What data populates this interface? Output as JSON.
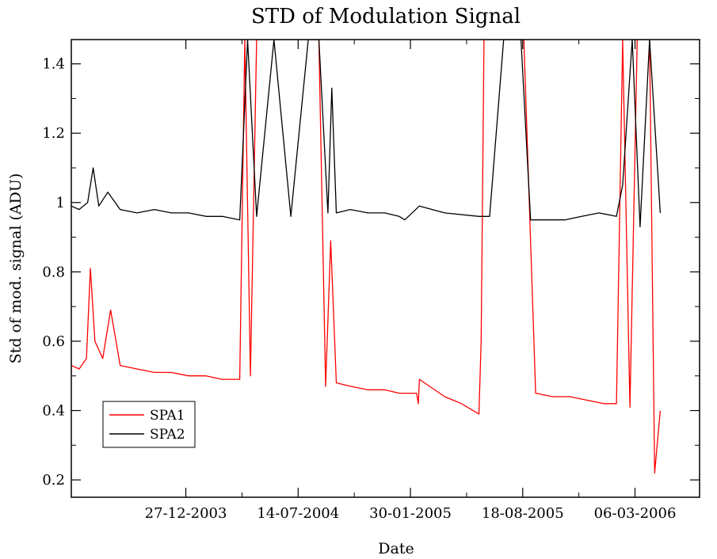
{
  "chart_data": {
    "type": "line",
    "title": "STD of Modulation Signal",
    "xlabel": "Date",
    "ylabel": "Std of mod. signal (ADU)",
    "x_axis_type": "date",
    "xlim": [
      "2003-06-06",
      "2006-06-29"
    ],
    "ylim": [
      0.15,
      1.47
    ],
    "x_tick_labels": [
      "27-12-2003",
      "14-07-2004",
      "30-01-2005",
      "18-08-2005",
      "06-03-2006"
    ],
    "x_ticks": [
      "2003-12-27",
      "2004-07-14",
      "2005-01-30",
      "2005-08-18",
      "2006-03-06"
    ],
    "y_ticks": [
      0.2,
      0.4,
      0.6,
      0.8,
      1.0,
      1.2,
      1.4
    ],
    "y_tick_labels": [
      "0.2",
      "0.4",
      "0.6",
      "0.8",
      "1",
      "1.2",
      "1.4"
    ],
    "grid": false,
    "legend_position": "bottom-left",
    "series": [
      {
        "name": "SPA1",
        "color": "#ff0000",
        "points": [
          [
            "2003-06-06",
            0.53
          ],
          [
            "2003-06-20",
            0.52
          ],
          [
            "2003-07-03",
            0.55
          ],
          [
            "2003-07-10",
            0.81
          ],
          [
            "2003-07-18",
            0.6
          ],
          [
            "2003-08-01",
            0.55
          ],
          [
            "2003-08-15",
            0.69
          ],
          [
            "2003-09-01",
            0.53
          ],
          [
            "2003-10-01",
            0.52
          ],
          [
            "2003-11-01",
            0.51
          ],
          [
            "2003-12-01",
            0.51
          ],
          [
            "2004-01-01",
            0.5
          ],
          [
            "2004-02-01",
            0.5
          ],
          [
            "2004-03-01",
            0.49
          ],
          [
            "2004-04-01",
            0.49
          ],
          [
            "2004-04-10",
            1.47
          ],
          [
            "2004-04-20",
            0.5
          ],
          [
            "2004-05-01",
            1.47
          ],
          [
            "2004-06-01",
            1.47
          ],
          [
            "2004-07-01",
            1.47
          ],
          [
            "2004-08-01",
            1.47
          ],
          [
            "2004-08-20",
            1.47
          ],
          [
            "2004-09-01",
            0.47
          ],
          [
            "2004-09-10",
            0.89
          ],
          [
            "2004-09-20",
            0.48
          ],
          [
            "2004-10-15",
            0.47
          ],
          [
            "2004-11-15",
            0.46
          ],
          [
            "2004-12-15",
            0.46
          ],
          [
            "2005-01-10",
            0.45
          ],
          [
            "2005-02-10",
            0.45
          ],
          [
            "2005-02-13",
            0.42
          ],
          [
            "2005-02-15",
            0.49
          ],
          [
            "2005-04-01",
            0.44
          ],
          [
            "2005-05-01",
            0.42
          ],
          [
            "2005-06-01",
            0.39
          ],
          [
            "2005-06-05",
            0.6
          ],
          [
            "2005-06-10",
            1.47
          ],
          [
            "2005-07-01",
            1.47
          ],
          [
            "2005-08-01",
            1.47
          ],
          [
            "2005-08-20",
            1.47
          ],
          [
            "2005-09-10",
            0.45
          ],
          [
            "2005-10-10",
            0.44
          ],
          [
            "2005-11-10",
            0.44
          ],
          [
            "2005-12-10",
            0.43
          ],
          [
            "2006-01-10",
            0.42
          ],
          [
            "2006-02-01",
            0.42
          ],
          [
            "2006-02-12",
            1.47
          ],
          [
            "2006-02-25",
            0.41
          ],
          [
            "2006-03-10",
            1.47
          ],
          [
            "2006-04-01",
            1.47
          ],
          [
            "2006-04-10",
            0.22
          ],
          [
            "2006-04-20",
            0.4
          ]
        ]
      },
      {
        "name": "SPA2",
        "color": "#000000",
        "points": [
          [
            "2003-06-06",
            0.99
          ],
          [
            "2003-06-20",
            0.98
          ],
          [
            "2003-07-05",
            1.0
          ],
          [
            "2003-07-15",
            1.1
          ],
          [
            "2003-07-25",
            0.99
          ],
          [
            "2003-08-10",
            1.03
          ],
          [
            "2003-09-01",
            0.98
          ],
          [
            "2003-10-01",
            0.97
          ],
          [
            "2003-11-01",
            0.98
          ],
          [
            "2003-12-01",
            0.97
          ],
          [
            "2004-01-01",
            0.97
          ],
          [
            "2004-02-01",
            0.96
          ],
          [
            "2004-03-01",
            0.96
          ],
          [
            "2004-04-01",
            0.95
          ],
          [
            "2004-04-15",
            1.47
          ],
          [
            "2004-05-01",
            0.96
          ],
          [
            "2004-06-01",
            1.47
          ],
          [
            "2004-07-01",
            0.96
          ],
          [
            "2004-08-01",
            1.47
          ],
          [
            "2004-08-20",
            1.47
          ],
          [
            "2004-09-05",
            0.97
          ],
          [
            "2004-09-12",
            1.33
          ],
          [
            "2004-09-20",
            0.97
          ],
          [
            "2004-10-15",
            0.98
          ],
          [
            "2004-11-15",
            0.97
          ],
          [
            "2004-12-15",
            0.97
          ],
          [
            "2005-01-10",
            0.96
          ],
          [
            "2005-01-20",
            0.95
          ],
          [
            "2005-02-15",
            0.99
          ],
          [
            "2005-04-01",
            0.97
          ],
          [
            "2005-06-01",
            0.96
          ],
          [
            "2005-06-20",
            0.96
          ],
          [
            "2005-07-15",
            1.47
          ],
          [
            "2005-08-15",
            1.47
          ],
          [
            "2005-09-01",
            0.95
          ],
          [
            "2005-10-01",
            0.95
          ],
          [
            "2005-11-01",
            0.95
          ],
          [
            "2005-12-01",
            0.96
          ],
          [
            "2006-01-01",
            0.97
          ],
          [
            "2006-02-01",
            0.96
          ],
          [
            "2006-02-12",
            1.05
          ],
          [
            "2006-03-01",
            1.47
          ],
          [
            "2006-03-15",
            0.93
          ],
          [
            "2006-04-01",
            1.47
          ],
          [
            "2006-04-20",
            0.97
          ]
        ]
      }
    ]
  }
}
